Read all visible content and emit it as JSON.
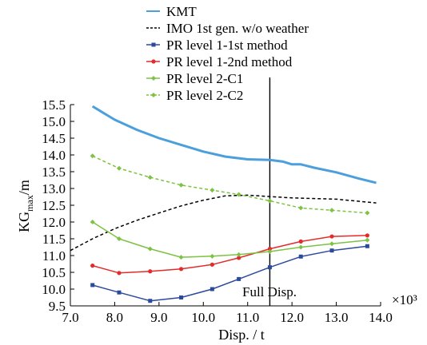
{
  "chart_data": {
    "type": "line",
    "xlabel": "Disp. / t",
    "ylabel_main": "KG",
    "ylabel_sub": "max",
    "ylabel_unit": "/m",
    "x_multiplier": "×10³",
    "xlim": [
      7.0,
      14.0
    ],
    "ylim": [
      9.5,
      15.5
    ],
    "x_ticks": [
      "7.0",
      "8.0",
      "9.0",
      "10.0",
      "11.0",
      "12.0",
      "13.0",
      "14.0"
    ],
    "y_ticks": [
      "9.5",
      "10.0",
      "10.5",
      "11.0",
      "11.5",
      "12.0",
      "12.5",
      "13.0",
      "13.5",
      "14.0",
      "14.5",
      "15.0",
      "15.5"
    ],
    "grid": false,
    "legend_position": "top",
    "annotation": {
      "text": "Full Disp.",
      "x": 11.5
    },
    "series": [
      {
        "name": "KMT",
        "color": "#4a9fdc",
        "style": "solid",
        "marker": "none",
        "x": [
          7.5,
          8.0,
          8.5,
          9.0,
          9.5,
          10.0,
          10.5,
          11.0,
          11.5,
          11.8,
          12.0,
          12.2,
          12.5,
          13.0,
          13.5,
          13.9
        ],
        "y": [
          15.45,
          15.05,
          14.75,
          14.5,
          14.3,
          14.1,
          13.95,
          13.87,
          13.85,
          13.8,
          13.72,
          13.72,
          13.62,
          13.48,
          13.3,
          13.17
        ]
      },
      {
        "name": "IMO 1st gen. w/o weather",
        "color": "#000000",
        "style": "dashed",
        "marker": "none",
        "x": [
          7.0,
          7.5,
          8.0,
          8.5,
          9.0,
          9.5,
          10.0,
          10.5,
          11.0,
          11.5,
          12.0,
          12.5,
          13.0,
          13.5,
          13.9
        ],
        "y": [
          11.15,
          11.5,
          11.8,
          12.05,
          12.27,
          12.48,
          12.65,
          12.78,
          12.8,
          12.76,
          12.72,
          12.7,
          12.68,
          12.62,
          12.57
        ]
      },
      {
        "name": "PR level 1-1st method",
        "color": "#2b4a9c",
        "style": "solid",
        "marker": "square",
        "x": [
          7.5,
          8.1,
          8.8,
          9.5,
          10.2,
          10.8,
          11.5,
          12.2,
          12.9,
          13.7
        ],
        "y": [
          10.12,
          9.9,
          9.65,
          9.75,
          10.0,
          10.3,
          10.65,
          10.97,
          11.15,
          11.28
        ]
      },
      {
        "name": "PR level 1-2nd method",
        "color": "#e32b2b",
        "style": "solid",
        "marker": "circle",
        "x": [
          7.5,
          8.1,
          8.8,
          9.5,
          10.2,
          10.8,
          11.5,
          12.2,
          12.9,
          13.7
        ],
        "y": [
          10.7,
          10.48,
          10.53,
          10.6,
          10.73,
          10.93,
          11.2,
          11.42,
          11.57,
          11.6
        ]
      },
      {
        "name": "PR level 2-C1",
        "color": "#7dc242",
        "style": "solid",
        "marker": "diamond",
        "x": [
          7.5,
          8.1,
          8.8,
          9.5,
          10.2,
          10.8,
          11.5,
          12.2,
          12.9,
          13.7
        ],
        "y": [
          12.0,
          11.5,
          11.2,
          10.95,
          10.98,
          11.03,
          11.12,
          11.25,
          11.35,
          11.46
        ]
      },
      {
        "name": "PR level 2-C2",
        "color": "#7dc242",
        "style": "dashed",
        "marker": "diamond",
        "x": [
          7.5,
          8.1,
          8.8,
          9.5,
          10.2,
          10.8,
          11.5,
          12.2,
          12.9,
          13.7
        ],
        "y": [
          13.97,
          13.6,
          13.33,
          13.1,
          12.95,
          12.82,
          12.63,
          12.42,
          12.35,
          12.27
        ]
      }
    ]
  }
}
